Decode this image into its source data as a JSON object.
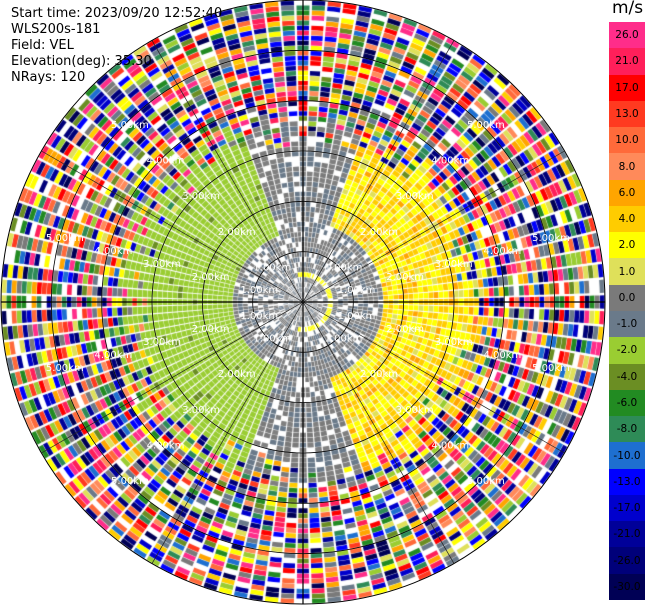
{
  "info": {
    "start_time_label": "Start time: 2023/09/20 12:52:40",
    "instrument_label": "WLS200s-181",
    "field_label": "Field: VEL",
    "elevation_label": "Elevation(deg): 35.30",
    "nrays_label": "NRays: 120"
  },
  "range_labels": [
    "1.00km",
    "2.00km",
    "3.00km",
    "4.00km",
    "5.00km"
  ],
  "colorbar": {
    "unit": "m/s",
    "ticks": [
      "26.0",
      "21.0",
      "17.0",
      "13.0",
      "10.0",
      "8.0",
      "6.0",
      "4.0",
      "2.0",
      "1.0",
      "0.0",
      "-1.0",
      "-2.0",
      "-4.0",
      "-6.0",
      "-8.0",
      "-10.0",
      "-13.0",
      "-17.0",
      "-21.0",
      "-26.0",
      "-30.0"
    ],
    "colors": [
      "#ff2d8a",
      "#ff1f5a",
      "#ff0000",
      "#ff3a20",
      "#ff6a3a",
      "#ff8a5a",
      "#ffa500",
      "#ffcc00",
      "#ffff00",
      "#dfe05a",
      "#7a7a7a",
      "#6a7a8a",
      "#9acd32",
      "#6b8e23",
      "#228b22",
      "#2e8b57",
      "#1e6fd0",
      "#0000ff",
      "#0000cd",
      "#000099",
      "#00007a",
      "#000055"
    ]
  },
  "ppi": {
    "field": "VEL",
    "n_rays": 120,
    "n_gates": 60,
    "max_range_km": 6.0
  }
}
